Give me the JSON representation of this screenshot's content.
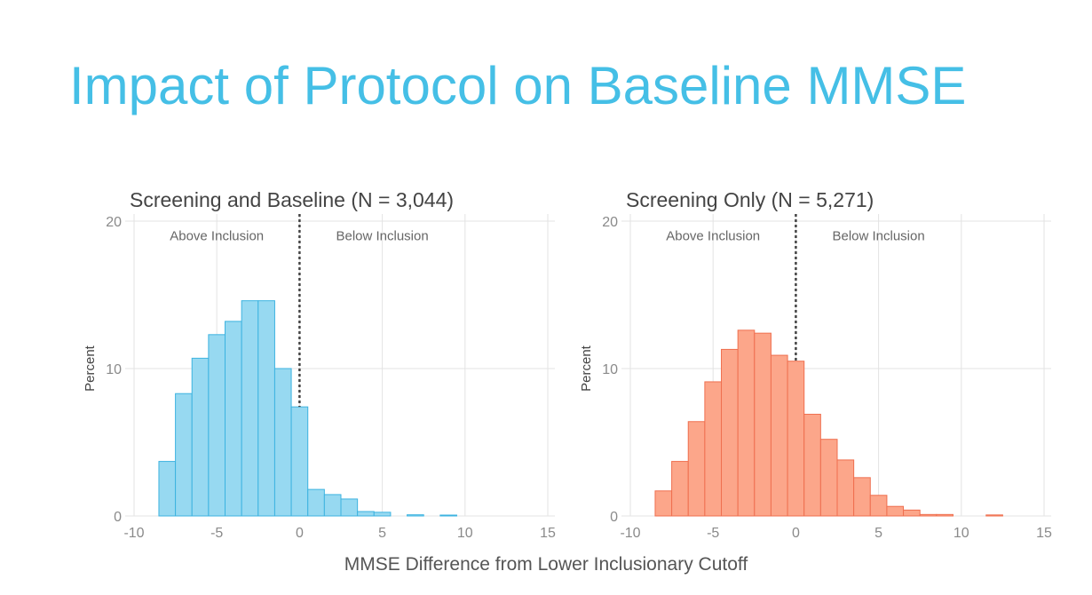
{
  "slide_title": "Impact of Protocol on Baseline MMSE",
  "shared_xlabel": "MMSE Difference from Lower Inclusionary Cutoff",
  "chart_data": [
    {
      "type": "bar",
      "title": "Screening and Baseline  (N = 3,044)",
      "ylabel": "Percent",
      "xlim": [
        -10,
        15
      ],
      "ylim": [
        0,
        20
      ],
      "xticks": [
        -10,
        -5,
        0,
        5,
        10,
        15
      ],
      "yticks": [
        0,
        10,
        20
      ],
      "grid": true,
      "bin_width": 1,
      "bin_starts": [
        -8.5,
        -7.5,
        -6.5,
        -5.5,
        -4.5,
        -3.5,
        -2.5,
        -1.5,
        -0.5,
        0.5,
        1.5,
        2.5,
        3.5,
        4.5,
        5.5,
        6.5,
        7.5,
        8.5
      ],
      "values": [
        3.7,
        8.3,
        10.7,
        12.3,
        13.2,
        14.6,
        14.6,
        10.0,
        7.4,
        1.8,
        1.45,
        1.15,
        0.3,
        0.25,
        0.0,
        0.08,
        0.0,
        0.06
      ],
      "cutoff_x": 0,
      "fill_color": "#97d9f1",
      "edge_color": "#3db3e0",
      "annotations": [
        {
          "text": "Above Inclusion",
          "x": -5,
          "y": 19
        },
        {
          "text": "Below Inclusion",
          "x": 5,
          "y": 19
        }
      ]
    },
    {
      "type": "bar",
      "title": "Screening Only (N = 5,271)",
      "ylabel": "Percent",
      "xlim": [
        -10,
        15
      ],
      "ylim": [
        0,
        20
      ],
      "xticks": [
        -10,
        -5,
        0,
        5,
        10,
        15
      ],
      "yticks": [
        0,
        10,
        20
      ],
      "grid": true,
      "bin_width": 1,
      "bin_starts": [
        -8.5,
        -7.5,
        -6.5,
        -5.5,
        -4.5,
        -3.5,
        -2.5,
        -1.5,
        -0.5,
        0.5,
        1.5,
        2.5,
        3.5,
        4.5,
        5.5,
        6.5,
        7.5,
        8.5,
        9.5,
        10.5,
        11.5
      ],
      "values": [
        1.7,
        3.7,
        6.4,
        9.1,
        11.3,
        12.6,
        12.4,
        10.9,
        10.5,
        6.9,
        5.2,
        3.8,
        2.6,
        1.4,
        0.65,
        0.4,
        0.1,
        0.1,
        0.0,
        0.0,
        0.07
      ],
      "cutoff_x": 0,
      "fill_color": "#fca68a",
      "edge_color": "#ef6f4f",
      "annotations": [
        {
          "text": "Above Inclusion",
          "x": -5,
          "y": 19
        },
        {
          "text": "Below Inclusion",
          "x": 5,
          "y": 19
        }
      ]
    }
  ]
}
